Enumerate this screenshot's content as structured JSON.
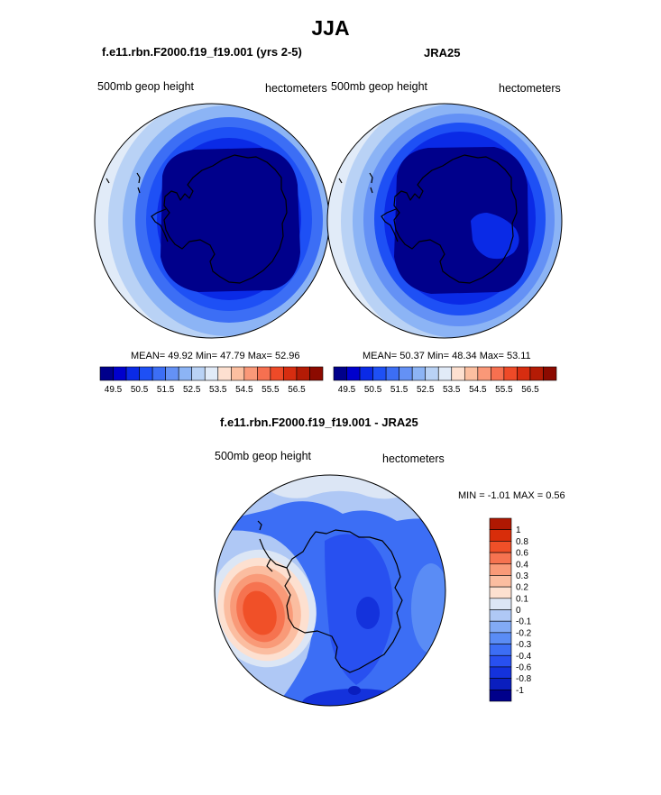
{
  "figure": {
    "title": "JJA"
  },
  "colors": {
    "scale": [
      "#00008b",
      "#0000cd",
      "#0a2ae6",
      "#1e50f5",
      "#3c6ef5",
      "#6491f5",
      "#8cb4f5",
      "#b9d2f5",
      "#e1ebf8",
      "#fde0d0",
      "#fcbfa0",
      "#fa9878",
      "#f67050",
      "#ee4a28",
      "#d72d10",
      "#b41b05",
      "#8c0a00"
    ],
    "diff_scale": [
      "#00008b",
      "#0a1ebe",
      "#1432dc",
      "#2850f0",
      "#3c6ef5",
      "#5a8cf5",
      "#82aaf5",
      "#afc8f5",
      "#dce6f5",
      "#fde0d0",
      "#fbbda0",
      "#f99a78",
      "#f67350",
      "#f05028",
      "#d82d0a",
      "#b01802",
      "#8c0a00"
    ]
  },
  "chart_data": [
    {
      "type": "heatmap",
      "projection": "south-polar-stereographic",
      "title": "f.e11.rbn.F2000.f19_f19.001 (yrs 2-5)",
      "left_label": "500mb geop height",
      "right_label": "hectometers",
      "stats": {
        "mean_label": "MEAN=",
        "mean": "49.92",
        "min_label": "Min=",
        "min": "47.79",
        "max_label": "Max=",
        "max": "52.96"
      },
      "colorbar": {
        "orientation": "horizontal",
        "ticks": [
          "49.5",
          "50.5",
          "51.5",
          "52.5",
          "53.5",
          "54.5",
          "55.5",
          "56.5"
        ]
      },
      "contour_levels": [
        49,
        49.5,
        50,
        50.5,
        51,
        51.5,
        52,
        52.5
      ]
    },
    {
      "type": "heatmap",
      "projection": "south-polar-stereographic",
      "title": "JRA25",
      "left_label": "500mb geop height",
      "right_label": "hectometers",
      "stats": {
        "mean_label": "MEAN=",
        "mean": "50.37",
        "min_label": "Min=",
        "min": "48.34",
        "max_label": "Max=",
        "max": "53.11"
      },
      "colorbar": {
        "orientation": "horizontal",
        "ticks": [
          "49.5",
          "50.5",
          "51.5",
          "52.5",
          "53.5",
          "54.5",
          "55.5",
          "56.5"
        ]
      },
      "contour_levels": [
        49,
        49.5,
        50,
        50.5,
        51,
        51.5,
        52,
        52.5
      ]
    },
    {
      "type": "heatmap",
      "projection": "south-polar-stereographic",
      "title": "f.e11.rbn.F2000.f19_f19.001 - JRA25",
      "left_label": "500mb geop height",
      "right_label": "hectometers",
      "stats": {
        "min_label": "MIN =",
        "min": "-1.01",
        "max_label": "MAX =",
        "max": "0.56"
      },
      "colorbar": {
        "orientation": "vertical",
        "ticks": [
          "1",
          "0.8",
          "0.6",
          "0.4",
          "0.3",
          "0.2",
          "0.1",
          "0",
          "-0.1",
          "-0.2",
          "-0.3",
          "-0.4",
          "-0.6",
          "-0.8",
          "-1"
        ]
      },
      "contour_levels": [
        -1,
        -0.8,
        -0.6,
        -0.4,
        -0.3,
        -0.2,
        -0.1,
        0,
        0.1,
        0.2,
        0.3,
        0.4,
        0.6,
        0.8,
        1
      ]
    }
  ]
}
